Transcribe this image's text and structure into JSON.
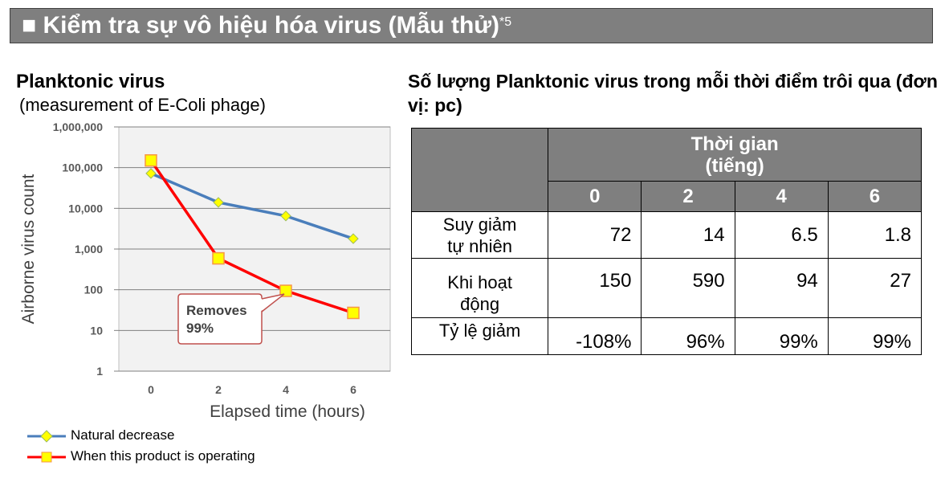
{
  "header": {
    "title": "■ Kiểm tra sự vô hiệu hóa virus (Mẫu thử)",
    "footnote": "*5"
  },
  "chart_heading": {
    "title": "Planktonic virus",
    "subtitle": "(measurement of E-Coli phage)"
  },
  "chart_data": {
    "type": "line",
    "xlabel": "Elapsed time (hours)",
    "ylabel": "Airborne virus count",
    "y_scale": "log",
    "ylim": [
      1,
      1000000
    ],
    "x": [
      0,
      2,
      4,
      6
    ],
    "x_tick_labels": [
      "0",
      "2",
      "4",
      "6"
    ],
    "y_tick_labels": [
      "1,000,000",
      "100,000",
      "10,000",
      "1,000",
      "100",
      "10",
      "1"
    ],
    "grid": true,
    "legend_position": "bottom",
    "series": [
      {
        "name": "Natural decrease",
        "values": [
          72000,
          14000,
          6500,
          1800
        ],
        "color": "#4a7ebb",
        "marker": "diamond",
        "marker_color": "#ffff00"
      },
      {
        "name": "When this product is operating",
        "values": [
          150000,
          590,
          94,
          27
        ],
        "color": "#ff0000",
        "marker": "square",
        "marker_color": "#ffff00"
      }
    ],
    "annotation": {
      "text_line1": "Removes",
      "text_line2": "99%",
      "target_x": 4,
      "border_color": "#c0504d"
    }
  },
  "table": {
    "title": "Số lượng Planktonic virus trong mỗi thời điểm trôi qua (đơn vị: pc)",
    "time_header_line1": "Thời gian",
    "time_header_line2": "(tiếng)",
    "columns": [
      "0",
      "2",
      "4",
      "6"
    ],
    "rows": [
      {
        "label_line1": "Suy giảm",
        "label_line2": "tự nhiên",
        "values": [
          "72",
          "14",
          "6.5",
          "1.8"
        ]
      },
      {
        "label_line1": "Khi hoạt",
        "label_line2": "động",
        "values": [
          "150",
          "590",
          "94",
          "27"
        ]
      },
      {
        "label_line1": "Tỷ lệ giảm",
        "label_line2": "",
        "values": [
          "-108%",
          "96%",
          "99%",
          "99%"
        ]
      }
    ]
  }
}
